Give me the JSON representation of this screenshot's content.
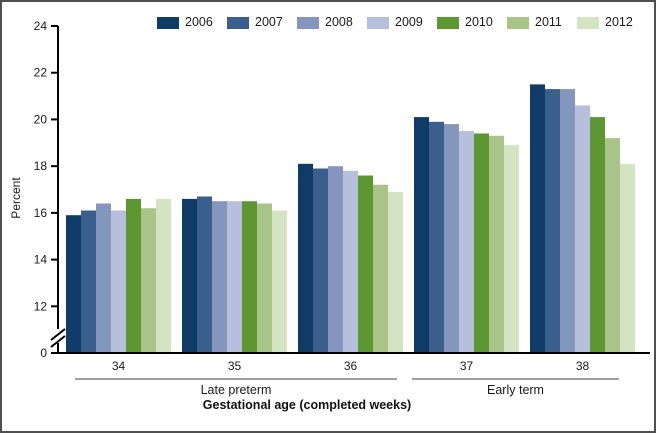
{
  "chart_data": {
    "type": "bar",
    "title": "",
    "ylabel": "Percent",
    "xlabel": "Gestational age (completed weeks)",
    "categories": [
      "34",
      "35",
      "36",
      "37",
      "38"
    ],
    "yticks": [
      0,
      12,
      14,
      16,
      18,
      20,
      22,
      24
    ],
    "ylim": [
      0,
      24
    ],
    "axis_break_between": [
      0,
      12
    ],
    "grid": false,
    "legend_position": "top",
    "series": [
      {
        "name": "2006",
        "color": "#103b66",
        "values": [
          15.9,
          16.6,
          18.1,
          20.1,
          21.5
        ]
      },
      {
        "name": "2007",
        "color": "#3a5f8c",
        "values": [
          16.1,
          16.7,
          17.9,
          19.9,
          21.3
        ]
      },
      {
        "name": "2008",
        "color": "#8496be",
        "values": [
          16.4,
          16.5,
          18.0,
          19.8,
          21.3
        ]
      },
      {
        "name": "2009",
        "color": "#b6c0dc",
        "values": [
          16.1,
          16.5,
          17.8,
          19.5,
          20.6
        ]
      },
      {
        "name": "2010",
        "color": "#5d9732",
        "values": [
          16.6,
          16.5,
          17.6,
          19.4,
          20.1
        ]
      },
      {
        "name": "2011",
        "color": "#a9c489",
        "values": [
          16.2,
          16.4,
          17.2,
          19.3,
          19.2
        ]
      },
      {
        "name": "2012",
        "color": "#d4e3c2",
        "values": [
          16.6,
          16.1,
          16.9,
          18.9,
          18.1
        ]
      }
    ],
    "group_spans": [
      {
        "label": "Late preterm",
        "from": "34",
        "to": "36"
      },
      {
        "label": "Early term",
        "from": "37",
        "to": "38"
      }
    ],
    "axis_color": "#000000",
    "span_line_color": "#808080"
  }
}
